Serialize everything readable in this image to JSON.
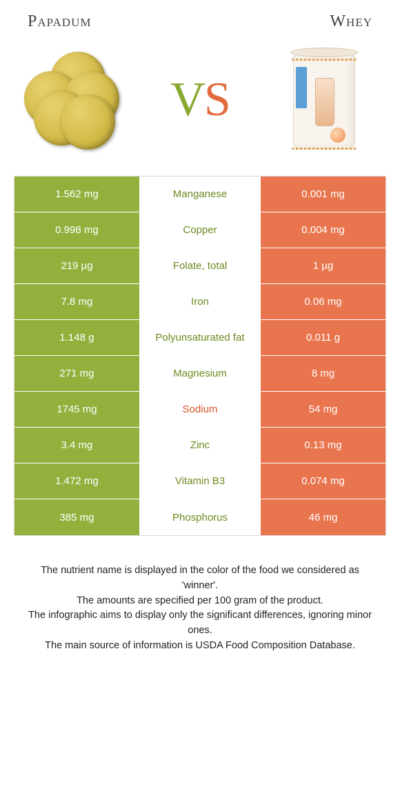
{
  "colors": {
    "left_bg": "#93b03d",
    "right_bg": "#e9754e",
    "left_text": "#6c8a1f",
    "right_text": "#d9532b",
    "cell_text": "#ffffff",
    "border": "#d9d9d9"
  },
  "header": {
    "left_title": "Papadum",
    "right_title": "Whey"
  },
  "vs": {
    "v": "V",
    "s": "S"
  },
  "rows": [
    {
      "left": "1.562 mg",
      "label": "Manganese",
      "right": "0.001 mg",
      "winner": "left"
    },
    {
      "left": "0.998 mg",
      "label": "Copper",
      "right": "0.004 mg",
      "winner": "left"
    },
    {
      "left": "219 µg",
      "label": "Folate, total",
      "right": "1 µg",
      "winner": "left"
    },
    {
      "left": "7.8 mg",
      "label": "Iron",
      "right": "0.06 mg",
      "winner": "left"
    },
    {
      "left": "1.148 g",
      "label": "Polyunsaturated fat",
      "right": "0.011 g",
      "winner": "left"
    },
    {
      "left": "271 mg",
      "label": "Magnesium",
      "right": "8 mg",
      "winner": "left"
    },
    {
      "left": "1745 mg",
      "label": "Sodium",
      "right": "54 mg",
      "winner": "right"
    },
    {
      "left": "3.4 mg",
      "label": "Zinc",
      "right": "0.13 mg",
      "winner": "left"
    },
    {
      "left": "1.472 mg",
      "label": "Vitamin B3",
      "right": "0.074 mg",
      "winner": "left"
    },
    {
      "left": "385 mg",
      "label": "Phosphorus",
      "right": "46 mg",
      "winner": "left"
    }
  ],
  "footer": {
    "line1": "The nutrient name is displayed in the color of the food we considered as 'winner'.",
    "line2": "The amounts are specified per 100 gram of the product.",
    "line3": "The infographic aims to display only the significant differences, ignoring minor ones.",
    "line4": "The main source of information is USDA Food Composition Database."
  }
}
